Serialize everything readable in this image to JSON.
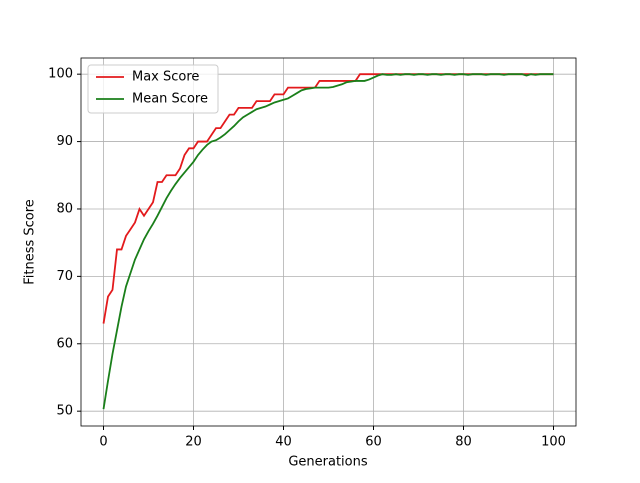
{
  "chart_data": {
    "type": "line",
    "x_label": "Generations",
    "y_label": "Fitness Score",
    "x": [
      0,
      1,
      2,
      3,
      4,
      5,
      6,
      7,
      8,
      9,
      10,
      11,
      12,
      13,
      14,
      15,
      16,
      17,
      18,
      19,
      20,
      21,
      22,
      23,
      24,
      25,
      26,
      27,
      28,
      29,
      30,
      31,
      32,
      33,
      34,
      35,
      36,
      37,
      38,
      39,
      40,
      41,
      42,
      43,
      44,
      45,
      46,
      47,
      48,
      49,
      50,
      51,
      52,
      53,
      54,
      55,
      56,
      57,
      58,
      59,
      60,
      61,
      62,
      63,
      64,
      65,
      66,
      67,
      68,
      69,
      70,
      71,
      72,
      73,
      74,
      75,
      76,
      77,
      78,
      79,
      80,
      81,
      82,
      83,
      84,
      85,
      86,
      87,
      88,
      89,
      90,
      91,
      92,
      93,
      94,
      95,
      96,
      97,
      98,
      99,
      100
    ],
    "series": [
      {
        "name": "Max Score",
        "color": "#e31a1c",
        "values": [
          63,
          67,
          68,
          74,
          74,
          76,
          77,
          78,
          80,
          79,
          80,
          81,
          84,
          84,
          85,
          85,
          85,
          86,
          88,
          89,
          89,
          90,
          90,
          90,
          91,
          92,
          92,
          93,
          94,
          94,
          95,
          95,
          95,
          95,
          96,
          96,
          96,
          96,
          97,
          97,
          97,
          98,
          98,
          98,
          98,
          98,
          98,
          98,
          99,
          99,
          99,
          99,
          99,
          99,
          99,
          99,
          99,
          100,
          100,
          100,
          100,
          100,
          100,
          100,
          100,
          100,
          100,
          100,
          100,
          100,
          100,
          100,
          100,
          100,
          100,
          100,
          100,
          100,
          100,
          100,
          100,
          100,
          100,
          100,
          100,
          100,
          100,
          100,
          100,
          100,
          100,
          100,
          100,
          100,
          100,
          100,
          100,
          100,
          100,
          100,
          100
        ]
      },
      {
        "name": "Mean Score",
        "color": "#1a7f1a",
        "values": [
          50.3,
          54.5,
          58.5,
          62,
          65.5,
          68.5,
          70.5,
          72.5,
          74,
          75.5,
          76.7,
          77.8,
          79,
          80.3,
          81.6,
          82.7,
          83.7,
          84.6,
          85.4,
          86.2,
          87,
          88,
          88.8,
          89.5,
          90,
          90.2,
          90.6,
          91.1,
          91.7,
          92.3,
          93,
          93.6,
          94,
          94.4,
          94.8,
          95,
          95.2,
          95.5,
          95.8,
          96,
          96.2,
          96.4,
          96.8,
          97.2,
          97.6,
          97.8,
          97.9,
          98,
          98,
          98,
          98,
          98.1,
          98.3,
          98.5,
          98.8,
          98.9,
          99,
          99,
          99,
          99.2,
          99.5,
          99.8,
          100,
          99.9,
          99.9,
          100,
          99.9,
          100,
          100,
          99.9,
          100,
          100,
          99.9,
          100,
          100,
          99.9,
          100,
          100,
          99.9,
          100,
          100,
          99.9,
          100,
          100,
          100,
          99.9,
          100,
          100,
          100,
          99.9,
          100,
          100,
          100,
          100,
          99.8,
          100,
          99.9,
          100,
          100,
          100,
          100
        ]
      }
    ],
    "xlim": [
      -5,
      105
    ],
    "ylim": [
      47.8,
      102.4
    ],
    "xticks": [
      0,
      20,
      40,
      60,
      80,
      100
    ],
    "yticks": [
      50,
      60,
      70,
      80,
      90,
      100
    ],
    "grid": true,
    "legend": "upper left"
  }
}
